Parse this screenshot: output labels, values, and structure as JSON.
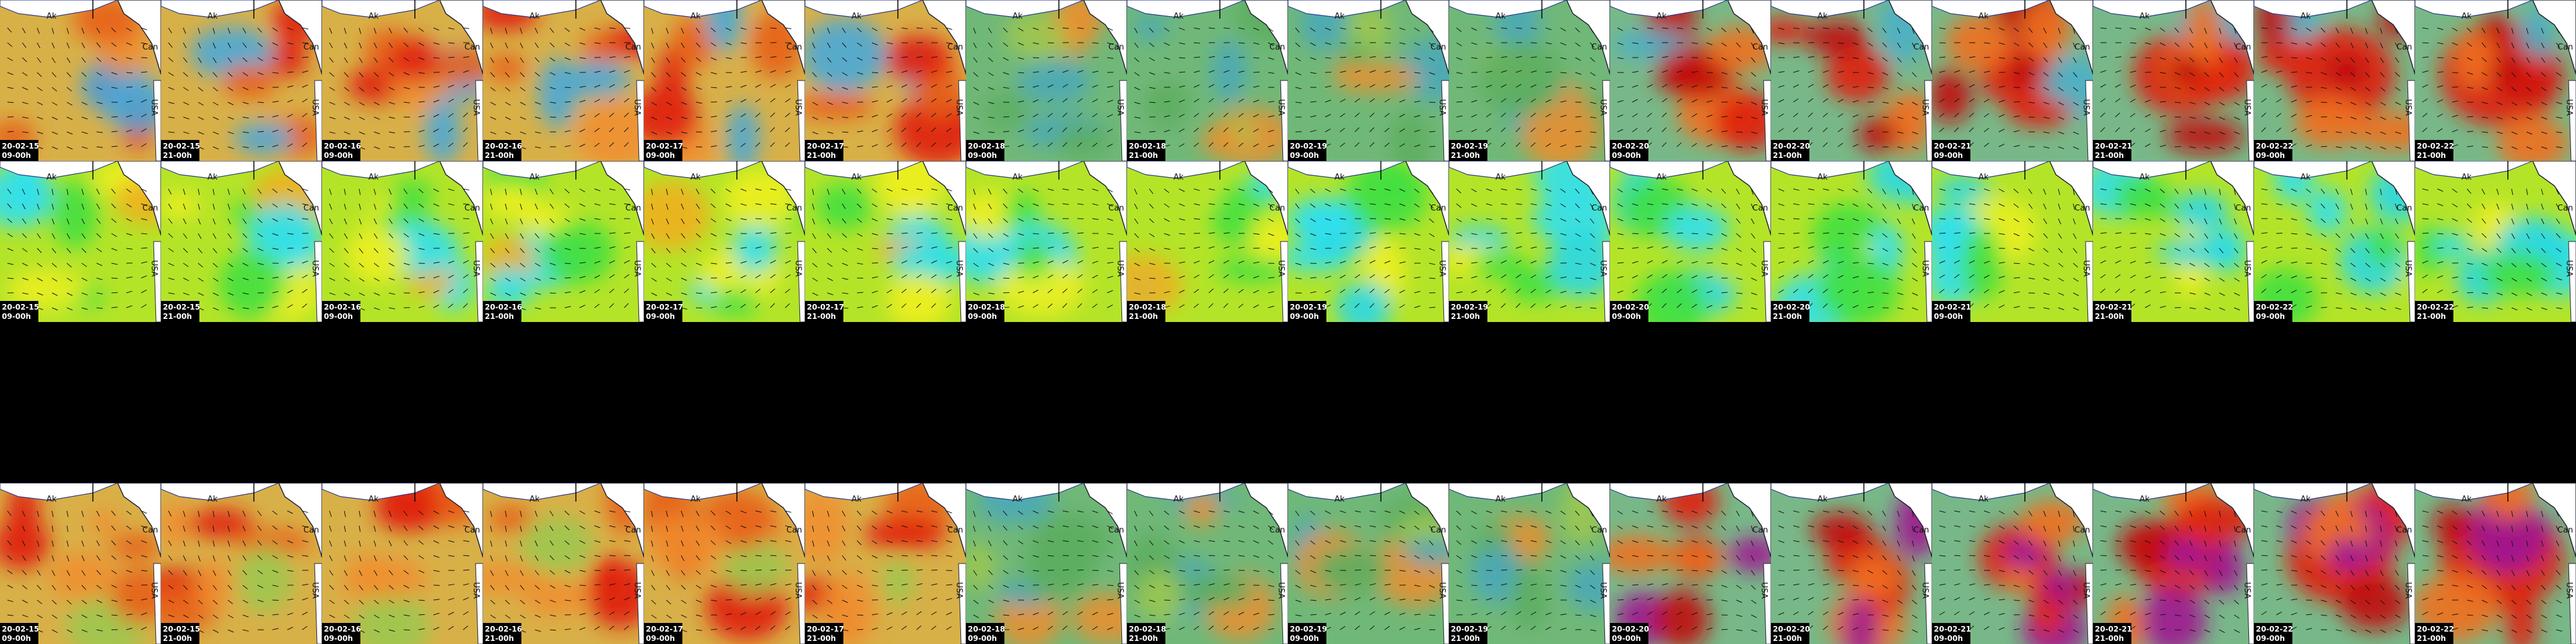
{
  "map_labels": {
    "alaska": "Ak",
    "canada": "Can",
    "usa": "USA"
  },
  "rows": [
    {
      "tiles": [
        {
          "date": "20-02-15",
          "time": "09-00h"
        },
        {
          "date": "20-02-15",
          "time": "21-00h"
        },
        {
          "date": "20-02-16",
          "time": "09-00h"
        },
        {
          "date": "20-02-16",
          "time": "21-00h"
        },
        {
          "date": "20-02-17",
          "time": "09-00h"
        },
        {
          "date": "20-02-17",
          "time": "21-00h"
        },
        {
          "date": "20-02-18",
          "time": "09-00h"
        },
        {
          "date": "20-02-18",
          "time": "21-00h"
        },
        {
          "date": "20-02-19",
          "time": "09-00h"
        },
        {
          "date": "20-02-19",
          "time": "21-00h"
        },
        {
          "date": "20-02-20",
          "time": "09-00h"
        },
        {
          "date": "20-02-20",
          "time": "21-00h"
        },
        {
          "date": "20-02-21",
          "time": "09-00h"
        },
        {
          "date": "20-02-21",
          "time": "21-00h"
        },
        {
          "date": "20-02-22",
          "time": "09-00h"
        },
        {
          "date": "20-02-22",
          "time": "21-00h"
        }
      ]
    },
    {
      "tiles": [
        {
          "date": "20-02-15",
          "time": "09-00h"
        },
        {
          "date": "20-02-15",
          "time": "21-00h"
        },
        {
          "date": "20-02-16",
          "time": "09-00h"
        },
        {
          "date": "20-02-16",
          "time": "21-00h"
        },
        {
          "date": "20-02-17",
          "time": "09-00h"
        },
        {
          "date": "20-02-17",
          "time": "21-00h"
        },
        {
          "date": "20-02-18",
          "time": "09-00h"
        },
        {
          "date": "20-02-18",
          "time": "21-00h"
        },
        {
          "date": "20-02-19",
          "time": "09-00h"
        },
        {
          "date": "20-02-19",
          "time": "21-00h"
        },
        {
          "date": "20-02-20",
          "time": "09-00h"
        },
        {
          "date": "20-02-20",
          "time": "21-00h"
        },
        {
          "date": "20-02-21",
          "time": "09-00h"
        },
        {
          "date": "20-02-21",
          "time": "21-00h"
        },
        {
          "date": "20-02-22",
          "time": "09-00h"
        },
        {
          "date": "20-02-22",
          "time": "21-00h"
        }
      ]
    },
    {
      "tiles": [
        {
          "date": "20-02-15",
          "time": "09-00h"
        },
        {
          "date": "20-02-15",
          "time": "21-00h"
        },
        {
          "date": "20-02-16",
          "time": "09-00h"
        },
        {
          "date": "20-02-16",
          "time": "21-00h"
        },
        {
          "date": "20-02-17",
          "time": "09-00h"
        },
        {
          "date": "20-02-17",
          "time": "21-00h"
        },
        {
          "date": "20-02-18",
          "time": "09-00h"
        },
        {
          "date": "20-02-18",
          "time": "21-00h"
        },
        {
          "date": "20-02-19",
          "time": "09-00h"
        },
        {
          "date": "20-02-19",
          "time": "21-00h"
        },
        {
          "date": "20-02-20",
          "time": "09-00h"
        },
        {
          "date": "20-02-20",
          "time": "21-00h"
        },
        {
          "date": "20-02-21",
          "time": "09-00h"
        },
        {
          "date": "20-02-21",
          "time": "21-00h"
        },
        {
          "date": "20-02-22",
          "time": "09-00h"
        },
        {
          "date": "20-02-22",
          "time": "21-00h"
        }
      ]
    }
  ]
}
